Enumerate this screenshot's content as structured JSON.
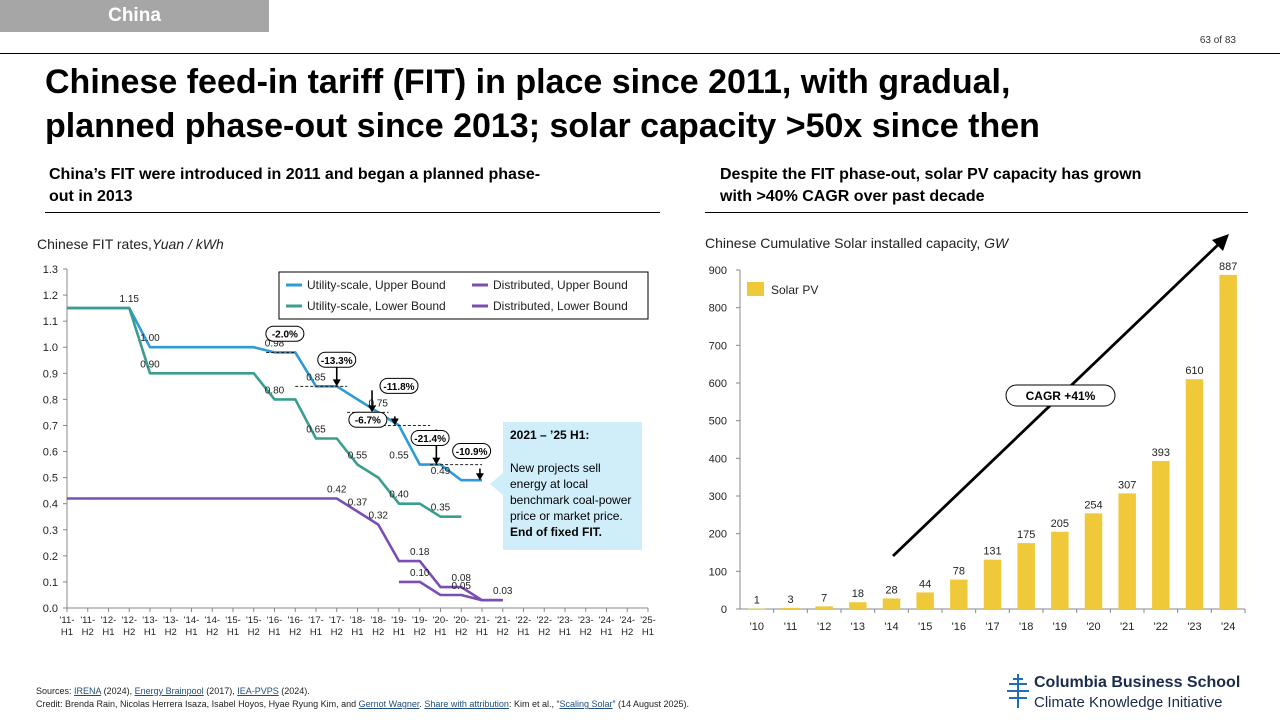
{
  "tag": "China",
  "page_number": "63 of 83",
  "title_line1": "Chinese feed-in tariff (FIT) in place since 2011, with gradual,",
  "title_line2": "planned phase-out since 2013; solar capacity >50x since then",
  "left": {
    "subtitle_line1": "China’s FIT were introduced in 2011 and began a planned phase-",
    "subtitle_line2": "out in 2013",
    "chart_title": "Chinese FIT rates,",
    "chart_unit": "Yuan / kWh"
  },
  "right": {
    "subtitle_line1": "Despite the FIT phase-out, solar PV capacity has grown",
    "subtitle_line2": "with >40% CAGR over past decade",
    "chart_title": "Chinese Cumulative Solar installed capacity,",
    "chart_unit": "GW"
  },
  "callout": {
    "heading": "2021 – ’25 H1:",
    "body": "New projects sell energy at local benchmark coal-power price or market price.",
    "emphasis": "End of fixed FIT."
  },
  "sources": {
    "label": "Sources:",
    "s1": "IRENA",
    "s1_year": "(2024),",
    "s2": "Energy Brainpool",
    "s2_year": "(2017),",
    "s3": "IEA-PVPS",
    "s3_year": "(2024).",
    "credit_prefix": "Credit: Brenda Rain, Nicolas Herrera Isaza, Isabel Hoyos, Hyae Ryung Kim, and",
    "credit_name": "Gernot Wagner",
    "share": "Share with attribution",
    "cite_authors": ": Kim et al., “",
    "cite_title": "Scaling Solar",
    "cite_date": "” (14 August 2025)."
  },
  "logo": {
    "line1": "Columbia Business School",
    "line2": "Climate Knowledge Initiative"
  },
  "colors": {
    "utility": "#2e9bd6",
    "utility_lower": "#3a9e8f",
    "distributed": "#7a4fb5",
    "bar": "#f0c93a",
    "accent_gray": "#a6a6a6"
  },
  "chart_data": [
    {
      "type": "line",
      "title": "Chinese FIT rates, Yuan / kWh",
      "ylabel": "Yuan / kWh",
      "ylim": [
        0,
        1.3
      ],
      "y_ticks": [
        "0.0",
        "0.1",
        "0.2",
        "0.3",
        "0.4",
        "0.5",
        "0.6",
        "0.7",
        "0.8",
        "0.9",
        "1.0",
        "1.1",
        "1.2",
        "1.3"
      ],
      "categories": [
        "'11-H1",
        "'11-H2",
        "'12-H1",
        "'12-H2",
        "'13-H1",
        "'13-H2",
        "'14-H1",
        "'14-H2",
        "'15-H1",
        "'15-H2",
        "'16-H1",
        "'16-H2",
        "'17-H1",
        "'17-H2",
        "'18-H1",
        "'18-H2",
        "'19-H1",
        "'19-H2",
        "'20-H1",
        "'20-H2",
        "'21-H1",
        "'21-H2",
        "'22-H1",
        "'22-H2",
        "'23-H1",
        "'23-H2",
        "'24-H1",
        "'24-H2",
        "'25-H1"
      ],
      "legend": "top-right",
      "series": [
        {
          "name": "Utility-scale, Upper Bound",
          "key": "util_up",
          "points": [
            [
              0,
              1.15
            ],
            [
              3,
              1.15
            ],
            [
              4,
              1.0
            ],
            [
              9,
              1.0
            ],
            [
              10,
              0.98
            ],
            [
              11,
              0.98
            ],
            [
              12,
              0.85
            ],
            [
              13,
              0.85
            ],
            [
              14,
              0.8
            ],
            [
              15,
              0.75
            ],
            [
              16,
              0.7
            ],
            [
              17,
              0.55
            ],
            [
              18,
              0.55
            ],
            [
              19,
              0.49
            ],
            [
              20,
              0.49
            ]
          ]
        },
        {
          "name": "Utility-scale, Lower Bound",
          "key": "util_low",
          "points": [
            [
              0,
              1.15
            ],
            [
              3,
              1.15
            ],
            [
              4,
              0.9
            ],
            [
              9,
              0.9
            ],
            [
              10,
              0.8
            ],
            [
              11,
              0.8
            ],
            [
              12,
              0.65
            ],
            [
              13,
              0.65
            ],
            [
              14,
              0.55
            ],
            [
              15,
              0.5
            ],
            [
              16,
              0.4
            ],
            [
              17,
              0.4
            ],
            [
              18,
              0.35
            ],
            [
              19,
              0.35
            ]
          ]
        },
        {
          "name": "Distributed, Upper Bound",
          "key": "dist_up",
          "points": [
            [
              0,
              0.42
            ],
            [
              13,
              0.42
            ],
            [
              14,
              0.37
            ],
            [
              15,
              0.32
            ],
            [
              16,
              0.18
            ],
            [
              17,
              0.18
            ],
            [
              18,
              0.08
            ],
            [
              19,
              0.08
            ],
            [
              20,
              0.03
            ],
            [
              21,
              0.03
            ]
          ]
        },
        {
          "name": "Distributed, Lower Bound",
          "key": "dist_low",
          "points": [
            [
              16,
              0.1
            ],
            [
              17,
              0.1
            ],
            [
              18,
              0.05
            ],
            [
              19,
              0.05
            ],
            [
              20,
              0.03
            ],
            [
              21,
              0.03
            ]
          ]
        }
      ],
      "data_labels": [
        {
          "text": "1.15",
          "x": 3,
          "y": 1.15
        },
        {
          "text": "1.00",
          "x": 4,
          "y": 1.0
        },
        {
          "text": "0.90",
          "x": 4,
          "y": 0.9
        },
        {
          "text": "0.98",
          "x": 10,
          "y": 0.98
        },
        {
          "text": "0.80",
          "x": 10,
          "y": 0.8
        },
        {
          "text": "0.85",
          "x": 12,
          "y": 0.85
        },
        {
          "text": "0.65",
          "x": 12,
          "y": 0.65
        },
        {
          "text": "0.75",
          "x": 15,
          "y": 0.75
        },
        {
          "text": "0.55",
          "x": 14,
          "y": 0.55
        },
        {
          "text": "0.55",
          "x": 16,
          "y": 0.55
        },
        {
          "text": "0.40",
          "x": 16,
          "y": 0.4
        },
        {
          "text": "0.49",
          "x": 18,
          "y": 0.49
        },
        {
          "text": "0.35",
          "x": 18,
          "y": 0.35
        },
        {
          "text": "0.42",
          "x": 13,
          "y": 0.42
        },
        {
          "text": "0.37",
          "x": 14,
          "y": 0.37
        },
        {
          "text": "0.32",
          "x": 15,
          "y": 0.32
        },
        {
          "text": "0.18",
          "x": 17,
          "y": 0.18
        },
        {
          "text": "0.10",
          "x": 17,
          "y": 0.1
        },
        {
          "text": "0.08",
          "x": 19,
          "y": 0.08
        },
        {
          "text": "0.05",
          "x": 19,
          "y": 0.05
        },
        {
          "text": "0.03",
          "x": 21,
          "y": 0.03
        }
      ],
      "annotations": [
        {
          "text": "-2.0%",
          "x": 10.5,
          "y": 1.05
        },
        {
          "text": "-13.3%",
          "x": 13,
          "y": 0.95
        },
        {
          "text": "-11.8%",
          "x": 16,
          "y": 0.85
        },
        {
          "text": "-6.7%",
          "x": 14.5,
          "y": 0.72
        },
        {
          "text": "-21.4%",
          "x": 17.5,
          "y": 0.65
        },
        {
          "text": "-10.9%",
          "x": 19.5,
          "y": 0.6
        }
      ],
      "arrows": [
        {
          "x": 13,
          "from": 0.98,
          "to": 0.85
        },
        {
          "x": 14.7,
          "from": 0.85,
          "to": 0.75
        },
        {
          "x": 15.8,
          "from": 0.75,
          "to": 0.7
        },
        {
          "x": 17.8,
          "from": 0.7,
          "to": 0.55
        },
        {
          "x": 19.9,
          "from": 0.55,
          "to": 0.49
        }
      ]
    },
    {
      "type": "bar",
      "title": "Chinese Cumulative Solar installed capacity, GW",
      "ylabel": "GW",
      "ylim": [
        0,
        900
      ],
      "y_ticks": [
        "0",
        "100",
        "200",
        "300",
        "400",
        "500",
        "600",
        "700",
        "800",
        "900"
      ],
      "categories": [
        "'10",
        "'11",
        "'12",
        "'13",
        "'14",
        "'15",
        "'16",
        "'17",
        "'18",
        "'19",
        "'20",
        "'21",
        "'22",
        "'23",
        "'24"
      ],
      "series": [
        {
          "name": "Solar PV",
          "values": [
            1,
            3,
            7,
            18,
            28,
            44,
            78,
            131,
            175,
            205,
            254,
            307,
            393,
            610,
            887
          ]
        }
      ],
      "annotation": "CAGR +41%",
      "legend": "top-left"
    }
  ]
}
